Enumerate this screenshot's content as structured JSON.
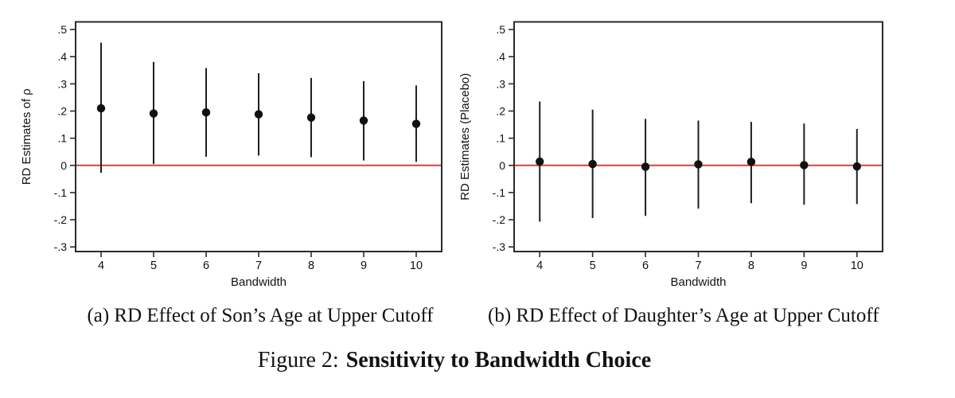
{
  "figure": {
    "background_color": "#ffffff",
    "axis_color": "#2b2b2b",
    "point_color": "#111111",
    "ci_color": "#1f1f1f",
    "zero_line_color": "#d1463e"
  },
  "chart_data": [
    {
      "type": "scatter",
      "panel": "a",
      "title": "",
      "xlabel": "Bandwidth",
      "ylabel": "RD Estimates of ρ",
      "x": [
        4,
        5,
        6,
        7,
        8,
        9,
        10
      ],
      "series": [
        {
          "name": "RD point estimate",
          "values": [
            0.21,
            0.191,
            0.195,
            0.188,
            0.176,
            0.165,
            0.153
          ]
        },
        {
          "name": "CI lower",
          "values": [
            -0.027,
            0.005,
            0.032,
            0.036,
            0.03,
            0.018,
            0.013
          ]
        },
        {
          "name": "CI upper",
          "values": [
            0.452,
            0.381,
            0.358,
            0.339,
            0.322,
            0.31,
            0.294
          ]
        }
      ],
      "xlim": [
        3.515,
        10.485
      ],
      "ylim": [
        -0.317,
        0.528
      ],
      "xticks": {
        "values": [
          4,
          5,
          6,
          7,
          8,
          9,
          10
        ],
        "labels": [
          "4",
          "5",
          "6",
          "7",
          "8",
          "9",
          "10"
        ]
      },
      "yticks": {
        "values": [
          0.5,
          0.4,
          0.3,
          0.2,
          0.1,
          0,
          -0.1,
          -0.2,
          -0.3
        ],
        "labels": [
          ".5",
          ".4",
          ".3",
          ".2",
          ".1",
          "0",
          "-.1",
          "-.2",
          "-.3"
        ]
      },
      "zero_line": 0,
      "grid": false,
      "legend": "none"
    },
    {
      "type": "scatter",
      "panel": "b",
      "title": "",
      "xlabel": "Bandwidth",
      "ylabel": "RD Estimates (Placebo)",
      "x": [
        4,
        5,
        6,
        7,
        8,
        9,
        10
      ],
      "series": [
        {
          "name": "RD point estimate",
          "values": [
            0.014,
            0.005,
            -0.005,
            0.004,
            0.013,
            0.001,
            -0.004
          ]
        },
        {
          "name": "CI lower",
          "values": [
            -0.207,
            -0.194,
            -0.186,
            -0.159,
            -0.139,
            -0.145,
            -0.142
          ]
        },
        {
          "name": "CI upper",
          "values": [
            0.235,
            0.205,
            0.171,
            0.165,
            0.16,
            0.154,
            0.134
          ]
        }
      ],
      "xlim": [
        3.515,
        10.485
      ],
      "ylim": [
        -0.317,
        0.528
      ],
      "xticks": {
        "values": [
          4,
          5,
          6,
          7,
          8,
          9,
          10
        ],
        "labels": [
          "4",
          "5",
          "6",
          "7",
          "8",
          "9",
          "10"
        ]
      },
      "yticks": {
        "values": [
          0.5,
          0.4,
          0.3,
          0.2,
          0.1,
          0,
          -0.1,
          -0.2,
          -0.3
        ],
        "labels": [
          ".5",
          ".4",
          ".3",
          ".2",
          ".1",
          "0",
          "-.1",
          "-.2",
          "-.3"
        ]
      },
      "zero_line": 0,
      "grid": false,
      "legend": "none"
    }
  ],
  "captions": {
    "panel_a": "(a) RD Effect of Son’s Age at Upper Cutoff",
    "panel_b": "(b) RD Effect of Daughter’s Age at Upper Cutoff",
    "figure_label": "Figure 2:",
    "figure_title": "Sensitivity to Bandwidth Choice"
  }
}
